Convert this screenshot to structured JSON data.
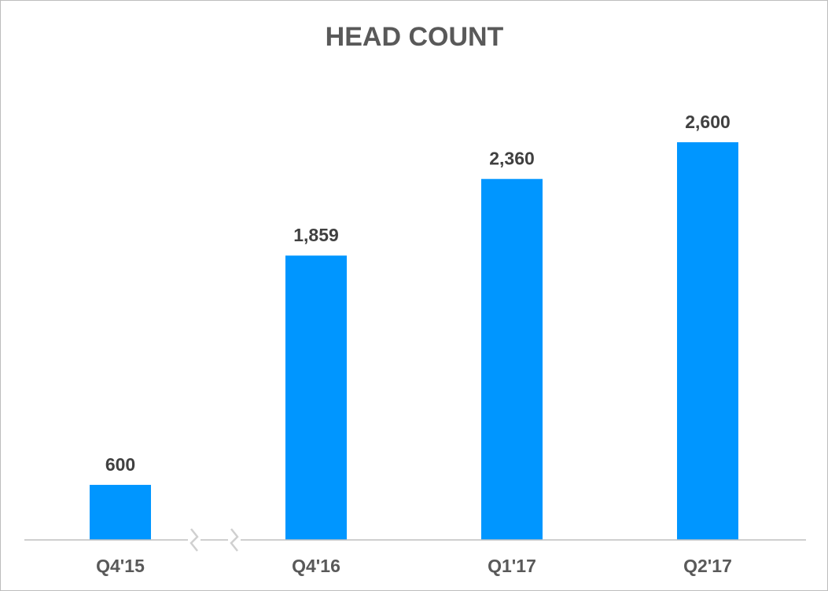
{
  "chart_data": {
    "type": "bar",
    "title": "HEAD COUNT",
    "categories": [
      "Q4'15",
      "Q4'16",
      "Q1'17",
      "Q2'17"
    ],
    "values": [
      600,
      1859,
      2360,
      2600
    ],
    "value_labels": [
      "600",
      "1,859",
      "2,360",
      "2,600"
    ],
    "xlabel": "",
    "ylabel": "",
    "ylim": [
      0,
      3000
    ],
    "grid": false,
    "legend": "none",
    "axis_break": "between Q4'15 and Q4'16",
    "colors": {
      "bar": "#0096FF",
      "axis": "#bfbfbf",
      "break": "#d0d0d0"
    }
  }
}
